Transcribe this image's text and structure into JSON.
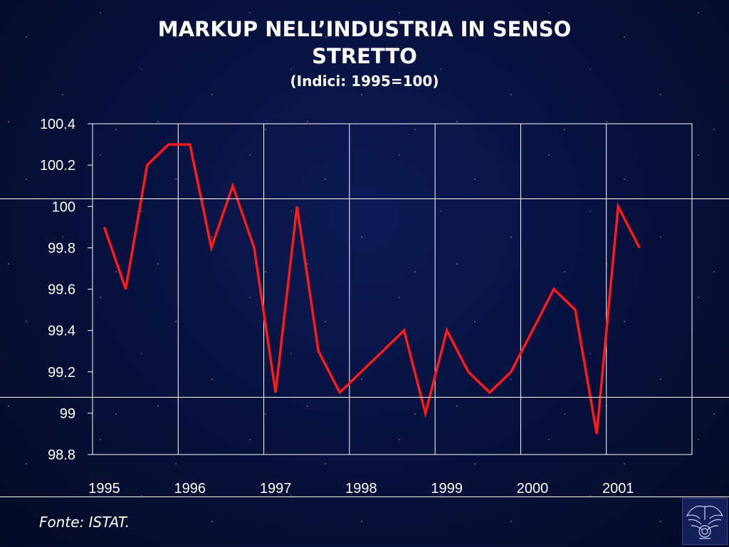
{
  "slide": {
    "title": "MARKUP NELL’INDUSTRIA IN SENSO STRETTO",
    "subtitle": "(Indici: 1995=100)",
    "source": "Fonte: ISTAT."
  },
  "chart_data": {
    "type": "line",
    "title": "MARKUP NELL’INDUSTRIA IN SENSO STRETTO",
    "subtitle": "(Indici: 1995=100)",
    "xlabel": "",
    "ylabel": "",
    "frequency": "quarterly",
    "x_ticks": [
      "1995",
      "1996",
      "1997",
      "1998",
      "1999",
      "2000",
      "2001"
    ],
    "x": [
      "1995-Q1",
      "1995-Q2",
      "1995-Q3",
      "1995-Q4",
      "1996-Q1",
      "1996-Q2",
      "1996-Q3",
      "1996-Q4",
      "1997-Q1",
      "1997-Q2",
      "1997-Q3",
      "1997-Q4",
      "1998-Q1",
      "1998-Q2",
      "1998-Q3",
      "1998-Q4",
      "1999-Q1",
      "1999-Q2",
      "1999-Q3",
      "1999-Q4",
      "2000-Q1",
      "2000-Q2",
      "2000-Q3",
      "2000-Q4",
      "2001-Q1",
      "2001-Q2"
    ],
    "y_ticks": [
      100.4,
      100.2,
      100,
      99.8,
      99.6,
      99.4,
      99.2,
      99,
      98.8
    ],
    "ylim": [
      98.8,
      100.4
    ],
    "grid": "vertical",
    "legend": "none",
    "series": [
      {
        "color": "#ff1a1a",
        "values": [
          99.9,
          99.6,
          100.2,
          100.3,
          100.3,
          99.8,
          100.1,
          99.8,
          99.1,
          100.0,
          99.3,
          99.1,
          99.2,
          99.3,
          99.4,
          99.0,
          99.4,
          99.2,
          99.1,
          99.2,
          99.4,
          99.6,
          99.5,
          98.9,
          100.0,
          99.8
        ]
      }
    ]
  }
}
